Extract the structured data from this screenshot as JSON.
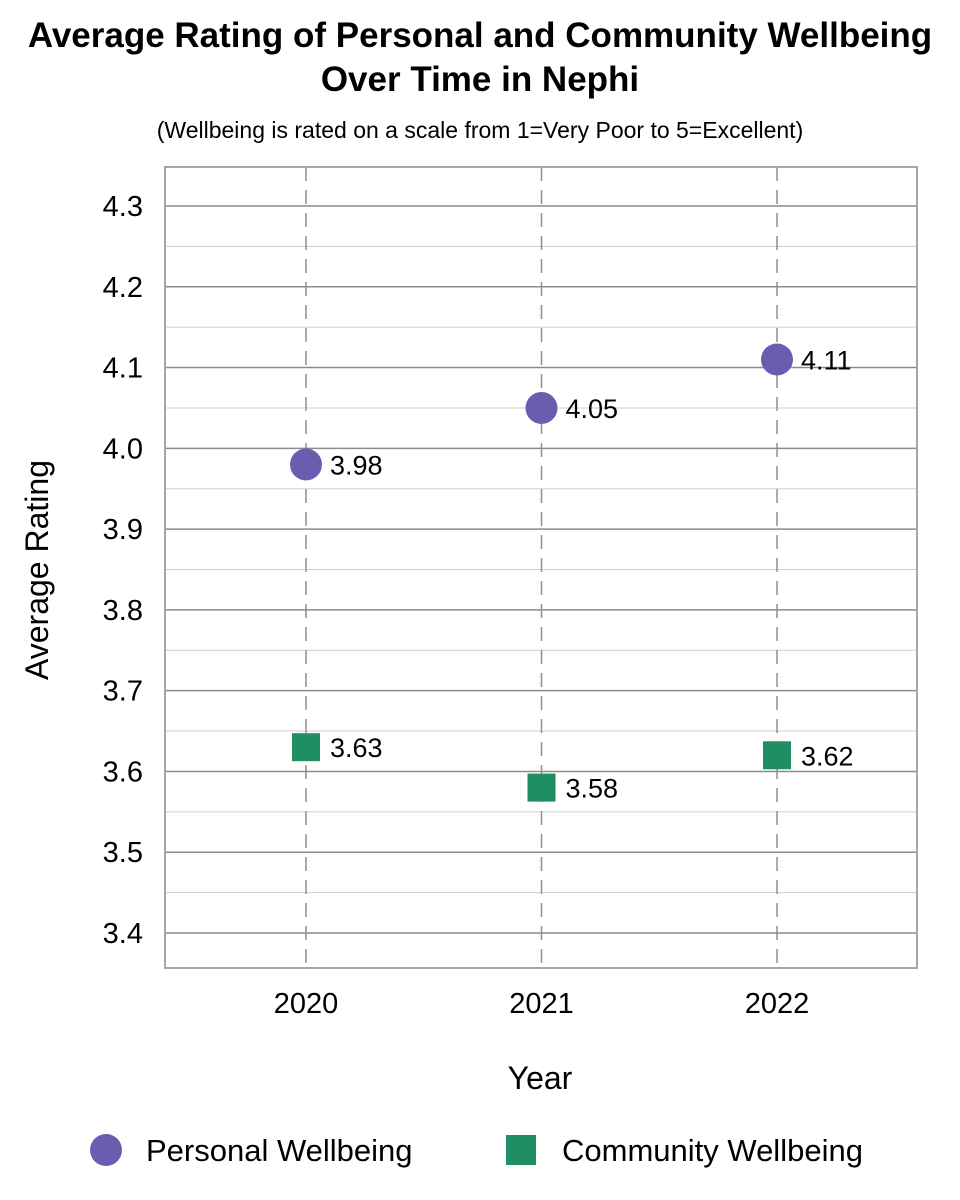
{
  "chart_data": {
    "type": "scatter",
    "title_line1": "Average Rating of Personal and Community Wellbeing",
    "title_line2": "Over Time in Nephi",
    "subtitle": "(Wellbeing is rated on a scale from 1=Very Poor to 5=Excellent)",
    "xlabel": "Year",
    "ylabel": "Average Rating",
    "categories": [
      "2020",
      "2021",
      "2022"
    ],
    "ylim": [
      3.4,
      4.3
    ],
    "yticks": [
      "3.4",
      "3.5",
      "3.6",
      "3.7",
      "3.8",
      "3.9",
      "4.0",
      "4.1",
      "4.2",
      "4.3"
    ],
    "grid": true,
    "legend_position": "bottom",
    "series": [
      {
        "name": "Personal Wellbeing",
        "marker": "circle",
        "color": "#6a5db0",
        "values": [
          3.98,
          4.05,
          4.11
        ],
        "labels": [
          "3.98",
          "4.05",
          "4.11"
        ]
      },
      {
        "name": "Community Wellbeing",
        "marker": "square",
        "color": "#1f8f63",
        "values": [
          3.63,
          3.58,
          3.62
        ],
        "labels": [
          "3.63",
          "3.58",
          "3.62"
        ]
      }
    ]
  }
}
